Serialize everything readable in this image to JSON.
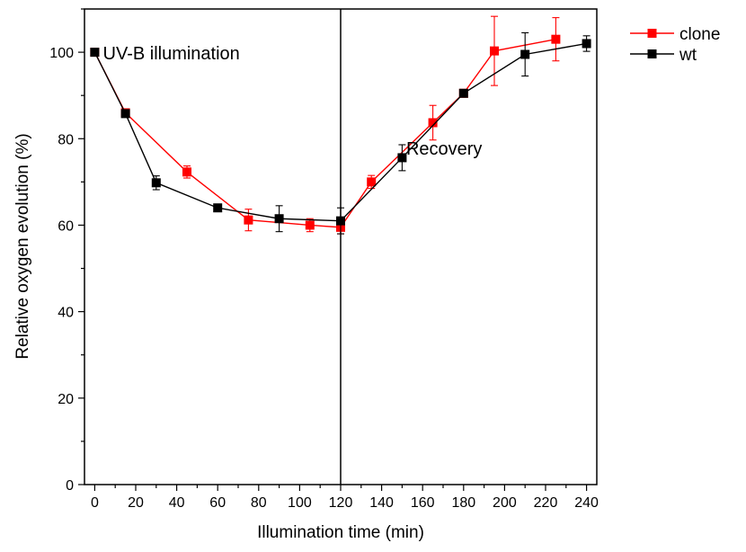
{
  "chart_data": {
    "type": "line",
    "title": "",
    "xlabel": "Illumination time (min)",
    "ylabel": "Relative oxygen evolution (%)",
    "xlim": [
      -5,
      245
    ],
    "ylim": [
      0,
      110
    ],
    "xticks": [
      0,
      20,
      40,
      60,
      80,
      100,
      120,
      140,
      160,
      180,
      200,
      220,
      240
    ],
    "xtick_labels": [
      "0",
      "20",
      "40",
      "60",
      "80",
      "100",
      "120",
      "140",
      "160",
      "180",
      "200",
      "220",
      "240"
    ],
    "yticks": [
      0,
      20,
      40,
      60,
      80,
      100
    ],
    "ytick_labels": [
      "0",
      "20",
      "40",
      "60",
      "80",
      "100"
    ],
    "grid": false,
    "legend_position": "outside-top-right",
    "vertical_line_x": 120,
    "annotations": [
      {
        "text": "UV-B illumination",
        "x": 4,
        "y": 100
      },
      {
        "text": "Recovery",
        "x": 152,
        "y": 78
      }
    ],
    "series": [
      {
        "name": "clone",
        "color": "#ff0000",
        "marker": "square",
        "x": [
          0,
          15,
          45,
          75,
          105,
          120,
          135,
          165,
          180,
          195,
          225
        ],
        "y": [
          100,
          86,
          72.3,
          61.2,
          60.0,
          59.5,
          70.0,
          83.7,
          90.5,
          100.3,
          103.0
        ],
        "err": [
          0,
          0.8,
          1.4,
          2.5,
          1.5,
          1.5,
          1.5,
          4.0,
          0.5,
          8.0,
          5.0
        ]
      },
      {
        "name": "wt",
        "color": "#000000",
        "marker": "square",
        "x": [
          0,
          15,
          30,
          60,
          90,
          120,
          150,
          180,
          210,
          240
        ],
        "y": [
          100,
          85.8,
          69.8,
          64.0,
          61.5,
          61.0,
          75.6,
          90.5,
          99.5,
          102.0
        ],
        "err": [
          0,
          0.5,
          1.6,
          0.5,
          3.0,
          3.0,
          3.0,
          0.5,
          5.0,
          1.8
        ]
      }
    ]
  }
}
